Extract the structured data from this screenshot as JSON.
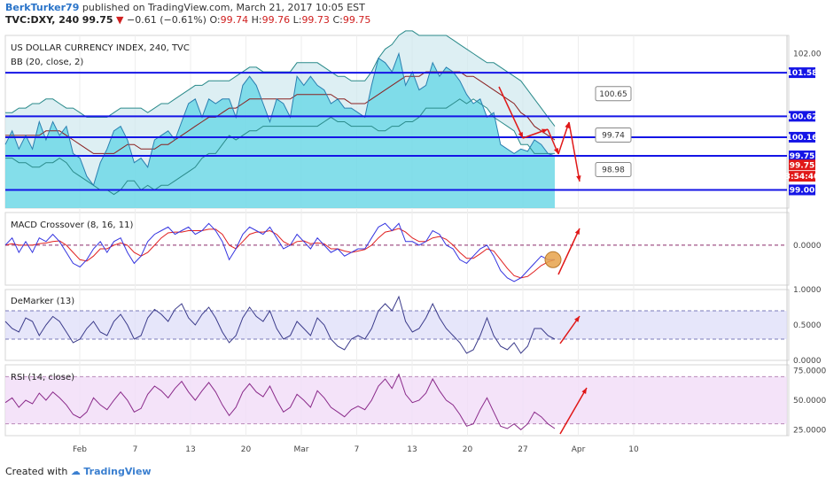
{
  "header": {
    "line1_author": "BerkTurker79",
    "line1_rest": "published on TradingView.com, March 21, 2017 10:05 EST",
    "symbol": "TVC:DXY, 240",
    "last": "99.75",
    "change_arrow": "▼",
    "change": "−0.61 (−0.61%)",
    "o_label": "O:",
    "o_value": "99.74",
    "h_label": "H:",
    "h_value": "99.76",
    "l_label": "L:",
    "l_value": "99.73",
    "c_label": "C:",
    "c_value": "99.75"
  },
  "footer": {
    "created_with": "Created with",
    "brand": "TradingView"
  },
  "colors": {
    "hline": "#1515e6",
    "bb_fill": "#cfe8ee",
    "area_fill": "#6fd8e6",
    "macd": "#3535e0",
    "signal": "#e02020",
    "demarker": "#3a3a8a",
    "rsi": "#8a2a8a",
    "arrow": "#e01818",
    "dm_band": "#dcdcf8",
    "rsi_band": "#f1dcf7"
  },
  "chart_data": [
    {
      "type": "line",
      "title": "US DOLLAR CURRENCY INDEX, 240, TVC",
      "indicator": "BB (20, close, 2)",
      "ylim": [
        98.6,
        102.4
      ],
      "y_ticks": [
        "102.00"
      ],
      "x_ticks": [
        "Feb",
        "7",
        "13",
        "20",
        "Mar",
        "7",
        "13",
        "20",
        "27",
        "Apr",
        "10"
      ],
      "horizontal_levels": [
        101.58,
        100.62,
        100.16,
        99.75,
        99.0
      ],
      "price_tags": [
        {
          "text": "101.58",
          "color": "#1515e6"
        },
        {
          "text": "100.62",
          "color": "#1515e6"
        },
        {
          "text": "100.16",
          "color": "#1515e6"
        },
        {
          "text": "99.75",
          "color": "#1515e6"
        },
        {
          "text": "99.75",
          "color": "#e01818"
        },
        {
          "text": "3:54:46",
          "color": "#e01818"
        },
        {
          "text": "99.00",
          "color": "#1515e6"
        }
      ],
      "callouts": [
        "100.65",
        "99.74",
        "98.98"
      ],
      "price": [
        100.0,
        100.3,
        99.9,
        100.2,
        99.9,
        100.5,
        100.1,
        100.5,
        100.2,
        100.4,
        99.8,
        99.7,
        99.3,
        99.1,
        99.6,
        99.9,
        100.3,
        100.4,
        100.1,
        99.6,
        99.7,
        99.5,
        100.1,
        100.2,
        100.3,
        100.1,
        100.5,
        100.9,
        101.0,
        100.6,
        101.0,
        100.9,
        101.0,
        101.0,
        100.6,
        101.3,
        101.5,
        101.3,
        100.9,
        100.5,
        101.0,
        100.9,
        100.6,
        101.5,
        101.3,
        101.5,
        101.3,
        101.2,
        100.9,
        101.0,
        100.8,
        100.8,
        100.7,
        100.6,
        101.3,
        101.9,
        101.8,
        101.6,
        102.0,
        101.3,
        101.6,
        101.2,
        101.3,
        101.8,
        101.5,
        101.7,
        101.6,
        101.4,
        101.1,
        100.9,
        101.0,
        100.6,
        100.7,
        100.0,
        99.9,
        99.8,
        99.9,
        99.85,
        100.1,
        100.0,
        99.8,
        99.75
      ],
      "bb_upper": [
        100.7,
        100.7,
        100.8,
        100.8,
        100.9,
        100.9,
        101.0,
        101.0,
        100.9,
        100.8,
        100.8,
        100.7,
        100.6,
        100.6,
        100.6,
        100.6,
        100.7,
        100.8,
        100.8,
        100.8,
        100.8,
        100.7,
        100.8,
        100.9,
        100.9,
        101.0,
        101.1,
        101.2,
        101.3,
        101.3,
        101.4,
        101.4,
        101.4,
        101.4,
        101.5,
        101.6,
        101.7,
        101.7,
        101.6,
        101.6,
        101.6,
        101.6,
        101.6,
        101.8,
        101.8,
        101.8,
        101.8,
        101.7,
        101.6,
        101.5,
        101.5,
        101.4,
        101.4,
        101.4,
        101.6,
        101.9,
        102.1,
        102.2,
        102.4,
        102.5,
        102.5,
        102.4,
        102.4,
        102.4,
        102.4,
        102.4,
        102.3,
        102.2,
        102.1,
        102.0,
        101.9,
        101.8,
        101.8,
        101.7,
        101.6,
        101.5,
        101.4,
        101.2,
        101.0,
        100.8,
        100.6,
        100.4
      ],
      "bb_mid": [
        100.2,
        100.2,
        100.2,
        100.2,
        100.2,
        100.2,
        100.3,
        100.3,
        100.3,
        100.2,
        100.1,
        100.0,
        99.9,
        99.8,
        99.8,
        99.8,
        99.8,
        99.9,
        100.0,
        100.0,
        99.9,
        99.9,
        99.9,
        100.0,
        100.0,
        100.1,
        100.2,
        100.3,
        100.4,
        100.5,
        100.6,
        100.6,
        100.7,
        100.8,
        100.8,
        100.9,
        101.0,
        101.0,
        101.0,
        101.0,
        101.0,
        101.0,
        101.0,
        101.1,
        101.1,
        101.1,
        101.1,
        101.1,
        101.1,
        101.0,
        101.0,
        100.9,
        100.9,
        100.9,
        101.0,
        101.1,
        101.2,
        101.3,
        101.4,
        101.5,
        101.5,
        101.5,
        101.6,
        101.6,
        101.6,
        101.6,
        101.6,
        101.6,
        101.5,
        101.5,
        101.4,
        101.3,
        101.2,
        101.1,
        101.0,
        100.9,
        100.7,
        100.6,
        100.4,
        100.3,
        100.2,
        100.1
      ],
      "bb_lower": [
        99.7,
        99.7,
        99.6,
        99.6,
        99.5,
        99.5,
        99.6,
        99.6,
        99.7,
        99.6,
        99.4,
        99.3,
        99.2,
        99.1,
        99.0,
        99.0,
        98.9,
        99.0,
        99.2,
        99.2,
        99.0,
        99.1,
        99.0,
        99.1,
        99.1,
        99.2,
        99.3,
        99.4,
        99.5,
        99.7,
        99.8,
        99.8,
        100.0,
        100.2,
        100.1,
        100.2,
        100.3,
        100.3,
        100.4,
        100.4,
        100.4,
        100.4,
        100.4,
        100.4,
        100.4,
        100.4,
        100.4,
        100.5,
        100.6,
        100.5,
        100.5,
        100.4,
        100.4,
        100.4,
        100.4,
        100.3,
        100.3,
        100.4,
        100.4,
        100.5,
        100.5,
        100.6,
        100.8,
        100.8,
        100.8,
        100.8,
        100.9,
        101.0,
        100.9,
        101.0,
        100.9,
        100.8,
        100.6,
        100.5,
        100.4,
        100.3,
        100.0,
        100.0,
        99.8,
        99.8,
        99.8,
        99.8
      ]
    },
    {
      "type": "line",
      "title": "MACD Crossover (8, 16, 11)",
      "ylim": [
        -0.55,
        0.45
      ],
      "y_ticks": [
        "0.0000"
      ],
      "series": [
        {
          "name": "",
          "values": [
            0.0,
            0.1,
            -0.1,
            0.05,
            -0.1,
            0.1,
            0.05,
            0.15,
            0.05,
            -0.1,
            -0.25,
            -0.3,
            -0.2,
            -0.05,
            0.05,
            -0.1,
            0.05,
            0.1,
            -0.1,
            -0.25,
            -0.15,
            0.05,
            0.15,
            0.2,
            0.25,
            0.15,
            0.2,
            0.25,
            0.15,
            0.2,
            0.3,
            0.2,
            0.05,
            -0.2,
            -0.05,
            0.15,
            0.25,
            0.2,
            0.15,
            0.25,
            0.1,
            -0.05,
            0.0,
            0.15,
            0.05,
            -0.05,
            0.1,
            0.0,
            -0.1,
            -0.05,
            -0.15,
            -0.1,
            -0.05,
            -0.05,
            0.1,
            0.25,
            0.3,
            0.2,
            0.3,
            0.05,
            0.05,
            0.0,
            0.05,
            0.2,
            0.15,
            0.0,
            -0.05,
            -0.2,
            -0.25,
            -0.15,
            -0.05,
            0.0,
            -0.15,
            -0.35,
            -0.45,
            -0.5,
            -0.45,
            -0.35,
            -0.25,
            -0.15,
            -0.2,
            -0.2
          ]
        },
        {
          "name": "",
          "values": [
            0.0,
            0.02,
            0.0,
            0.0,
            0.0,
            0.02,
            0.03,
            0.05,
            0.06,
            0.0,
            -0.1,
            -0.2,
            -0.22,
            -0.15,
            -0.05,
            -0.05,
            0.0,
            0.03,
            0.0,
            -0.1,
            -0.15,
            -0.1,
            0.0,
            0.1,
            0.17,
            0.18,
            0.18,
            0.2,
            0.2,
            0.2,
            0.22,
            0.22,
            0.15,
            0.0,
            -0.05,
            0.05,
            0.15,
            0.18,
            0.18,
            0.2,
            0.15,
            0.05,
            0.0,
            0.05,
            0.06,
            0.02,
            0.03,
            0.02,
            -0.05,
            -0.05,
            -0.08,
            -0.1,
            -0.08,
            -0.06,
            0.0,
            0.1,
            0.18,
            0.2,
            0.23,
            0.18,
            0.1,
            0.05,
            0.05,
            0.1,
            0.12,
            0.08,
            0.0,
            -0.1,
            -0.18,
            -0.18,
            -0.12,
            -0.05,
            -0.08,
            -0.2,
            -0.32,
            -0.42,
            -0.45,
            -0.43,
            -0.36,
            -0.28,
            -0.23,
            -0.2
          ]
        }
      ]
    },
    {
      "type": "line",
      "title": "DeMarker (13)",
      "ylim": [
        0,
        1.0
      ],
      "y_ticks": [
        "1.0000",
        "0.5000",
        "0.0000"
      ],
      "bands": [
        0.3,
        0.7
      ],
      "series": [
        {
          "name": "",
          "values": [
            0.55,
            0.45,
            0.4,
            0.6,
            0.55,
            0.35,
            0.5,
            0.62,
            0.55,
            0.4,
            0.25,
            0.3,
            0.45,
            0.55,
            0.4,
            0.35,
            0.55,
            0.65,
            0.5,
            0.3,
            0.35,
            0.6,
            0.72,
            0.65,
            0.55,
            0.72,
            0.8,
            0.6,
            0.5,
            0.65,
            0.75,
            0.6,
            0.4,
            0.25,
            0.35,
            0.6,
            0.75,
            0.62,
            0.55,
            0.7,
            0.45,
            0.3,
            0.35,
            0.55,
            0.45,
            0.35,
            0.6,
            0.5,
            0.3,
            0.2,
            0.15,
            0.3,
            0.35,
            0.3,
            0.45,
            0.7,
            0.8,
            0.7,
            0.9,
            0.55,
            0.4,
            0.45,
            0.6,
            0.8,
            0.6,
            0.45,
            0.35,
            0.25,
            0.1,
            0.15,
            0.35,
            0.6,
            0.35,
            0.2,
            0.15,
            0.25,
            0.1,
            0.2,
            0.45,
            0.45,
            0.35,
            0.3
          ]
        }
      ]
    },
    {
      "type": "line",
      "title": "RSI (14, close)",
      "ylim": [
        20,
        80
      ],
      "y_ticks": [
        "75.0000",
        "50.0000",
        "25.0000"
      ],
      "bands": [
        30,
        70
      ],
      "series": [
        {
          "name": "",
          "values": [
            48,
            52,
            44,
            50,
            47,
            56,
            50,
            57,
            52,
            46,
            38,
            35,
            40,
            52,
            46,
            42,
            50,
            57,
            50,
            40,
            43,
            55,
            62,
            58,
            52,
            60,
            66,
            57,
            50,
            58,
            65,
            57,
            46,
            37,
            44,
            57,
            64,
            57,
            53,
            62,
            50,
            40,
            44,
            55,
            50,
            44,
            58,
            52,
            44,
            40,
            36,
            42,
            45,
            42,
            50,
            62,
            68,
            60,
            72,
            55,
            48,
            50,
            56,
            68,
            58,
            50,
            46,
            38,
            28,
            30,
            42,
            52,
            40,
            28,
            26,
            30,
            25,
            30,
            40,
            36,
            30,
            26
          ]
        }
      ]
    }
  ]
}
